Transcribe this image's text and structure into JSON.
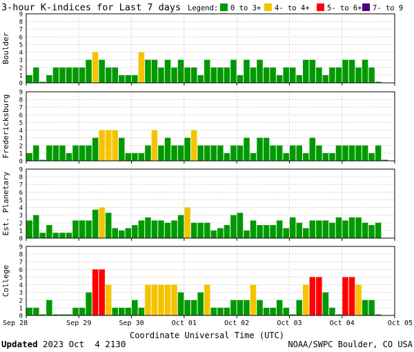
{
  "header": {
    "title": "3-hour K-indices for Last 7 days",
    "legend_label": "Legend:",
    "legend": [
      {
        "label": "0 to 3+",
        "color": "#009900"
      },
      {
        "label": "4- to 4+",
        "color": "#f5c400"
      },
      {
        "label": "5- to 6+",
        "color": "#ff0000"
      },
      {
        "label": "7- to 9",
        "color": "#4b0082"
      }
    ]
  },
  "footer": {
    "updated_label": "Updated",
    "updated_value": "2023 Oct  4 2130",
    "credit": "NOAA/SWPC Boulder, CO USA"
  },
  "chart_data": {
    "type": "bar",
    "xlabel": "Coordinate Universal Time (UTC)",
    "x_ticks": [
      "Sep 28",
      "Sep 29",
      "Sep 30",
      "Oct 01",
      "Oct 02",
      "Oct 03",
      "Oct 04",
      "Oct 05"
    ],
    "ylim": [
      0,
      9
    ],
    "y_ticks": [
      "0",
      "1",
      "2",
      "3",
      "4",
      "5",
      "6",
      "7",
      "8",
      "9"
    ],
    "grid": true,
    "colors": {
      "low": "#009900",
      "mid": "#f5c400",
      "high": "#ff0000",
      "storm": "#4b0082"
    },
    "series": [
      {
        "name": "Boulder",
        "values": [
          1,
          2,
          0,
          1,
          2,
          2,
          2,
          2,
          2,
          3,
          4,
          3,
          2,
          2,
          1,
          1,
          1,
          4,
          3,
          3,
          2,
          3,
          2,
          3,
          2,
          2,
          1,
          3,
          2,
          2,
          2,
          3,
          1,
          3,
          2,
          3,
          2,
          2,
          1,
          2,
          2,
          1,
          3,
          3,
          2,
          1,
          2,
          2,
          3,
          3,
          2,
          3,
          2,
          0
        ]
      },
      {
        "name": "Fredericksburg",
        "values": [
          1,
          2,
          0,
          2,
          2,
          2,
          1,
          2,
          2,
          2,
          3,
          4,
          4,
          4,
          3,
          1,
          1,
          1,
          2,
          4,
          2,
          3,
          2,
          2,
          3,
          4,
          2,
          2,
          2,
          2,
          1,
          2,
          2,
          3,
          1,
          3,
          3,
          2,
          2,
          1,
          2,
          2,
          1,
          3,
          2,
          1,
          1,
          2,
          2,
          2,
          2,
          2,
          1,
          2,
          0
        ]
      },
      {
        "name": "Est. Planetary",
        "values": [
          2.3,
          3,
          0.7,
          1.7,
          0.7,
          0.7,
          0.7,
          2.3,
          2.3,
          2.3,
          3.7,
          4,
          3.3,
          1.3,
          1,
          1.3,
          1.7,
          2.3,
          2.7,
          2.3,
          2.3,
          2,
          2.3,
          3,
          4,
          2,
          2,
          2,
          1,
          1.3,
          1.7,
          3,
          3.3,
          1,
          2.3,
          1.7,
          1.7,
          1.7,
          2.3,
          1.3,
          2.7,
          2,
          1.3,
          2.3,
          2.3,
          2.3,
          2,
          2.7,
          2.3,
          2.7,
          2.7,
          2,
          1.7,
          2
        ]
      },
      {
        "name": "College",
        "values": [
          1,
          1,
          0,
          2,
          0,
          0,
          0,
          1,
          1,
          3,
          6,
          6,
          4,
          1,
          1,
          1,
          2,
          1,
          4,
          4,
          4,
          4,
          4,
          3,
          2,
          2,
          3,
          4,
          1,
          1,
          1,
          2,
          2,
          2,
          4,
          2,
          1,
          1,
          2,
          1,
          0,
          2,
          4,
          5,
          5,
          3,
          1,
          0,
          5,
          5,
          4,
          2,
          2,
          0
        ]
      }
    ]
  }
}
